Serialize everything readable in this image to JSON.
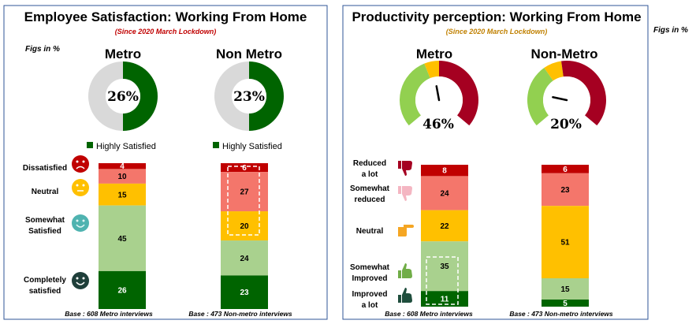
{
  "chart_data": [
    {
      "type": "stacked-bar-with-donut",
      "title": "Employee Satisfaction: Working From Home",
      "subtitle": "(Since 2020 March Lockdown)",
      "figs_note": "Figs in %",
      "colors": {
        "dark_green": "#006400",
        "light_green": "#a9d18e",
        "amber": "#ffc000",
        "salmon": "#f4766b",
        "red": "#c00000",
        "grey": "#d9d9d9"
      },
      "donuts": [
        {
          "name": "Metro",
          "value": 26,
          "label": "26%",
          "legend": "Highly Satisfied"
        },
        {
          "name": "Non Metro",
          "value": 23,
          "label": "23%",
          "legend": "Highly Satisfied"
        }
      ],
      "categories": [
        "Dissatisfied",
        "Neutral",
        "Somewhat Satisfied",
        "Completely satisfied"
      ],
      "category_lines": [
        [
          "Dissatisfied"
        ],
        [
          "Neutral"
        ],
        [
          "Somewhat",
          "Satisfied"
        ],
        [
          "Completely",
          "satisfied"
        ]
      ],
      "category_icons": [
        "angry-face-icon",
        "neutral-face-icon",
        "smile-face-icon",
        "happy-face-icon"
      ],
      "bars": [
        {
          "name": "Metro",
          "segments": [
            4,
            10,
            15,
            45,
            26
          ],
          "base": "Base : 608 Metro interviews"
        },
        {
          "name": "Non Metro",
          "segments": [
            6,
            27,
            20,
            24,
            23
          ],
          "base": "Base : 473 Non-metro interviews"
        }
      ]
    },
    {
      "type": "stacked-bar-with-gauge",
      "title": "Productivity perception: Working From Home",
      "subtitle": "(Since 2020 March Lockdown)",
      "figs_note": "Figs in %",
      "colors": {
        "dark_green": "#006400",
        "light_green": "#a9d18e",
        "amber": "#ffc000",
        "salmon": "#f4766b",
        "red": "#c00000",
        "gauge_green": "#92d050",
        "gauge_red": "#a50021"
      },
      "gauges": [
        {
          "name": "Metro",
          "value": 46,
          "label": "46%"
        },
        {
          "name": "Non-Metro",
          "value": 20,
          "label": "20%"
        }
      ],
      "categories": [
        "Reduced a lot",
        "Somewhat reduced",
        "Neutral",
        "Somewhat Improved",
        "Improved a lot"
      ],
      "category_lines": [
        [
          "Reduced",
          "a lot"
        ],
        [
          "Somewhat",
          "reduced"
        ],
        [
          "Neutral"
        ],
        [
          "Somewhat",
          "Improved"
        ],
        [
          "Improved",
          "a lot"
        ]
      ],
      "category_icons": [
        "thumbs-down-dark-icon",
        "thumbs-down-light-icon",
        "hand-pointing-icon",
        "thumbs-up-light-icon",
        "thumbs-up-dark-icon"
      ],
      "bars": [
        {
          "name": "Metro",
          "segments": [
            8,
            24,
            22,
            35,
            11
          ],
          "base": "Base : 608 Metro interviews"
        },
        {
          "name": "Non-Metro",
          "segments": [
            6,
            23,
            51,
            15,
            5
          ],
          "base": "Base : 473 Non-metro interviews"
        }
      ]
    }
  ]
}
